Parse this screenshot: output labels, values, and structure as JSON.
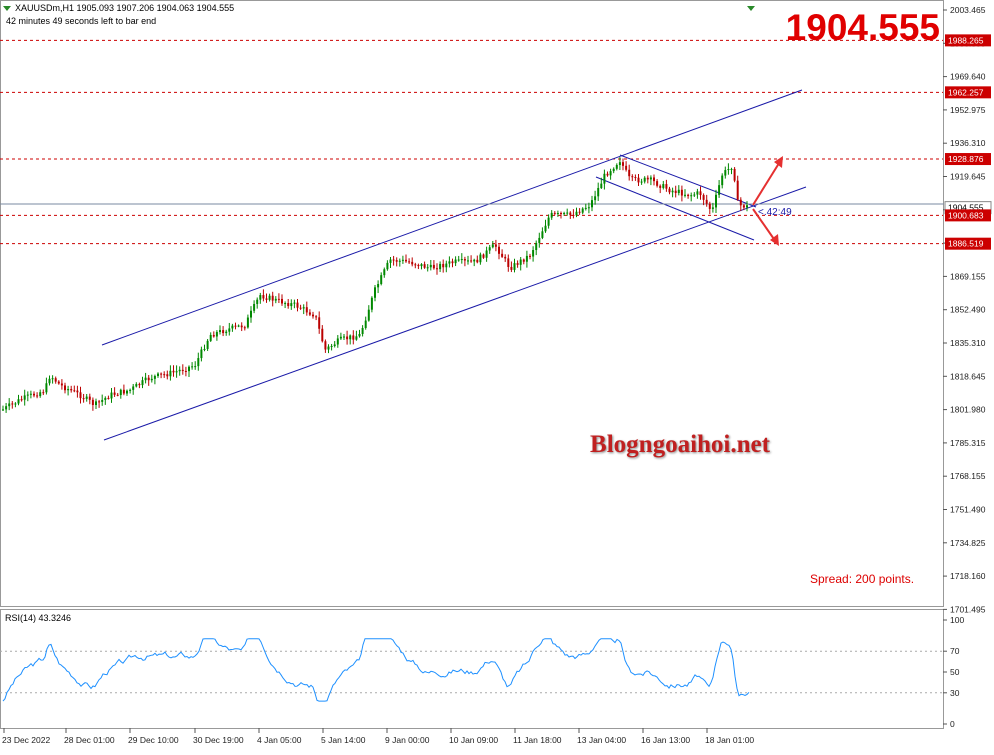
{
  "header": {
    "symbol_line": "XAUUSDm,H1  1905.093 1907.206 1904.063 1904.555",
    "timer_line": "42 minutes 49 seconds left to bar end"
  },
  "big_price": "1904.555",
  "watermark": "Blogngoaihoi.net",
  "spread": "Spread: 200 points.",
  "countdown": "<.42:49",
  "price_axis": {
    "ticks": [
      "2003.465",
      "1986.800",
      "1969.640",
      "1952.975",
      "1936.310",
      "1919.645",
      "1902.980",
      "1886.315",
      "1869.155",
      "1852.490",
      "1835.310",
      "1818.645",
      "1801.980",
      "1785.315",
      "1768.155",
      "1751.490",
      "1734.825",
      "1718.160",
      "1701.495"
    ],
    "current_price": "1904.555"
  },
  "levels": [
    {
      "label": "1988.265",
      "price": 1988.265
    },
    {
      "label": "1962.257",
      "price": 1962.257
    },
    {
      "label": "1928.876",
      "price": 1928.876
    },
    {
      "label": "1900.683",
      "price": 1900.683
    },
    {
      "label": "1886.519",
      "price": 1886.519
    }
  ],
  "rsi": {
    "label": "RSI(14) 43.3246",
    "ticks": [
      "100",
      "70",
      "50",
      "30",
      "0"
    ]
  },
  "time_axis": [
    "23 Dec 2022",
    "28 Dec 01:00",
    "29 Dec 10:00",
    "30 Dec 19:00",
    "4 Jan 05:00",
    "5 Jan 14:00",
    "9 Jan 00:00",
    "10 Jan 09:00",
    "11 Jan 18:00",
    "13 Jan 04:00",
    "16 Jan 13:00",
    "18 Jan 01:00"
  ],
  "colors": {
    "level_line": "#cc0000",
    "channel": "#0000aa",
    "bull": "#008800",
    "bear": "#bb0000",
    "rsi_line": "#1e90ff",
    "big_price": "#e00000",
    "arrow": "#e53030"
  }
}
